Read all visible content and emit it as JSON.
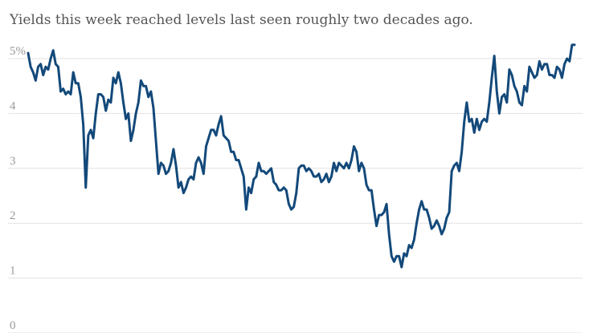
{
  "chart_data": {
    "type": "line",
    "subtitle": "Yields this week reached levels last seen roughly two decades ago.",
    "ylim": [
      0,
      5.5
    ],
    "yticks": [
      0,
      1,
      2,
      3,
      4,
      {
        "value": 5,
        "label": "5%"
      }
    ],
    "grid": true,
    "color": "#13497a",
    "values": [
      5.1,
      4.85,
      4.75,
      4.6,
      4.85,
      4.9,
      4.7,
      4.85,
      4.8,
      5.0,
      5.15,
      4.9,
      4.85,
      4.4,
      4.45,
      4.35,
      4.4,
      4.35,
      4.75,
      4.55,
      4.55,
      4.3,
      3.8,
      2.65,
      3.6,
      3.7,
      3.55,
      4.0,
      4.35,
      4.35,
      4.3,
      4.05,
      4.25,
      4.2,
      4.65,
      4.55,
      4.75,
      4.55,
      4.2,
      3.9,
      4.0,
      3.5,
      3.7,
      4.0,
      4.2,
      4.6,
      4.5,
      4.5,
      4.3,
      4.4,
      4.1,
      3.5,
      2.9,
      3.1,
      3.05,
      2.9,
      2.95,
      3.1,
      3.35,
      3.05,
      2.65,
      2.75,
      2.55,
      2.65,
      2.8,
      2.85,
      2.8,
      3.1,
      3.2,
      3.1,
      2.9,
      3.4,
      3.55,
      3.7,
      3.7,
      3.6,
      3.8,
      3.95,
      3.6,
      3.55,
      3.5,
      3.3,
      3.3,
      3.15,
      3.15,
      3.0,
      2.85,
      2.25,
      2.65,
      2.55,
      2.8,
      2.85,
      3.1,
      2.95,
      2.95,
      2.9,
      2.95,
      3.0,
      2.75,
      2.7,
      2.6,
      2.6,
      2.65,
      2.6,
      2.35,
      2.25,
      2.3,
      2.55,
      3.0,
      3.05,
      3.05,
      2.95,
      3.0,
      2.95,
      2.85,
      2.85,
      2.9,
      2.75,
      2.8,
      2.9,
      2.75,
      2.85,
      3.1,
      2.95,
      3.1,
      3.05,
      3.0,
      3.1,
      3.0,
      3.15,
      3.4,
      3.3,
      2.95,
      3.1,
      3.0,
      2.7,
      2.6,
      2.6,
      2.25,
      1.95,
      2.15,
      2.15,
      2.2,
      2.35,
      1.8,
      1.4,
      1.3,
      1.4,
      1.4,
      1.2,
      1.45,
      1.4,
      1.6,
      1.55,
      1.7,
      2.0,
      2.25,
      2.4,
      2.25,
      2.25,
      2.1,
      1.9,
      1.95,
      2.05,
      1.95,
      1.8,
      1.9,
      2.1,
      2.2,
      2.95,
      3.05,
      3.1,
      2.95,
      3.3,
      3.85,
      4.2,
      3.85,
      3.9,
      3.65,
      3.9,
      3.7,
      3.85,
      3.9,
      3.85,
      4.2,
      4.65,
      5.05,
      4.4,
      4.0,
      4.3,
      4.35,
      4.2,
      4.8,
      4.7,
      4.5,
      4.4,
      4.2,
      4.15,
      4.5,
      4.4,
      4.85,
      4.75,
      4.65,
      4.7,
      4.95,
      4.8,
      4.9,
      4.9,
      4.7,
      4.7,
      4.65,
      4.85,
      4.8,
      4.65,
      4.9,
      5.0,
      4.95,
      5.25,
      5.25
    ]
  }
}
